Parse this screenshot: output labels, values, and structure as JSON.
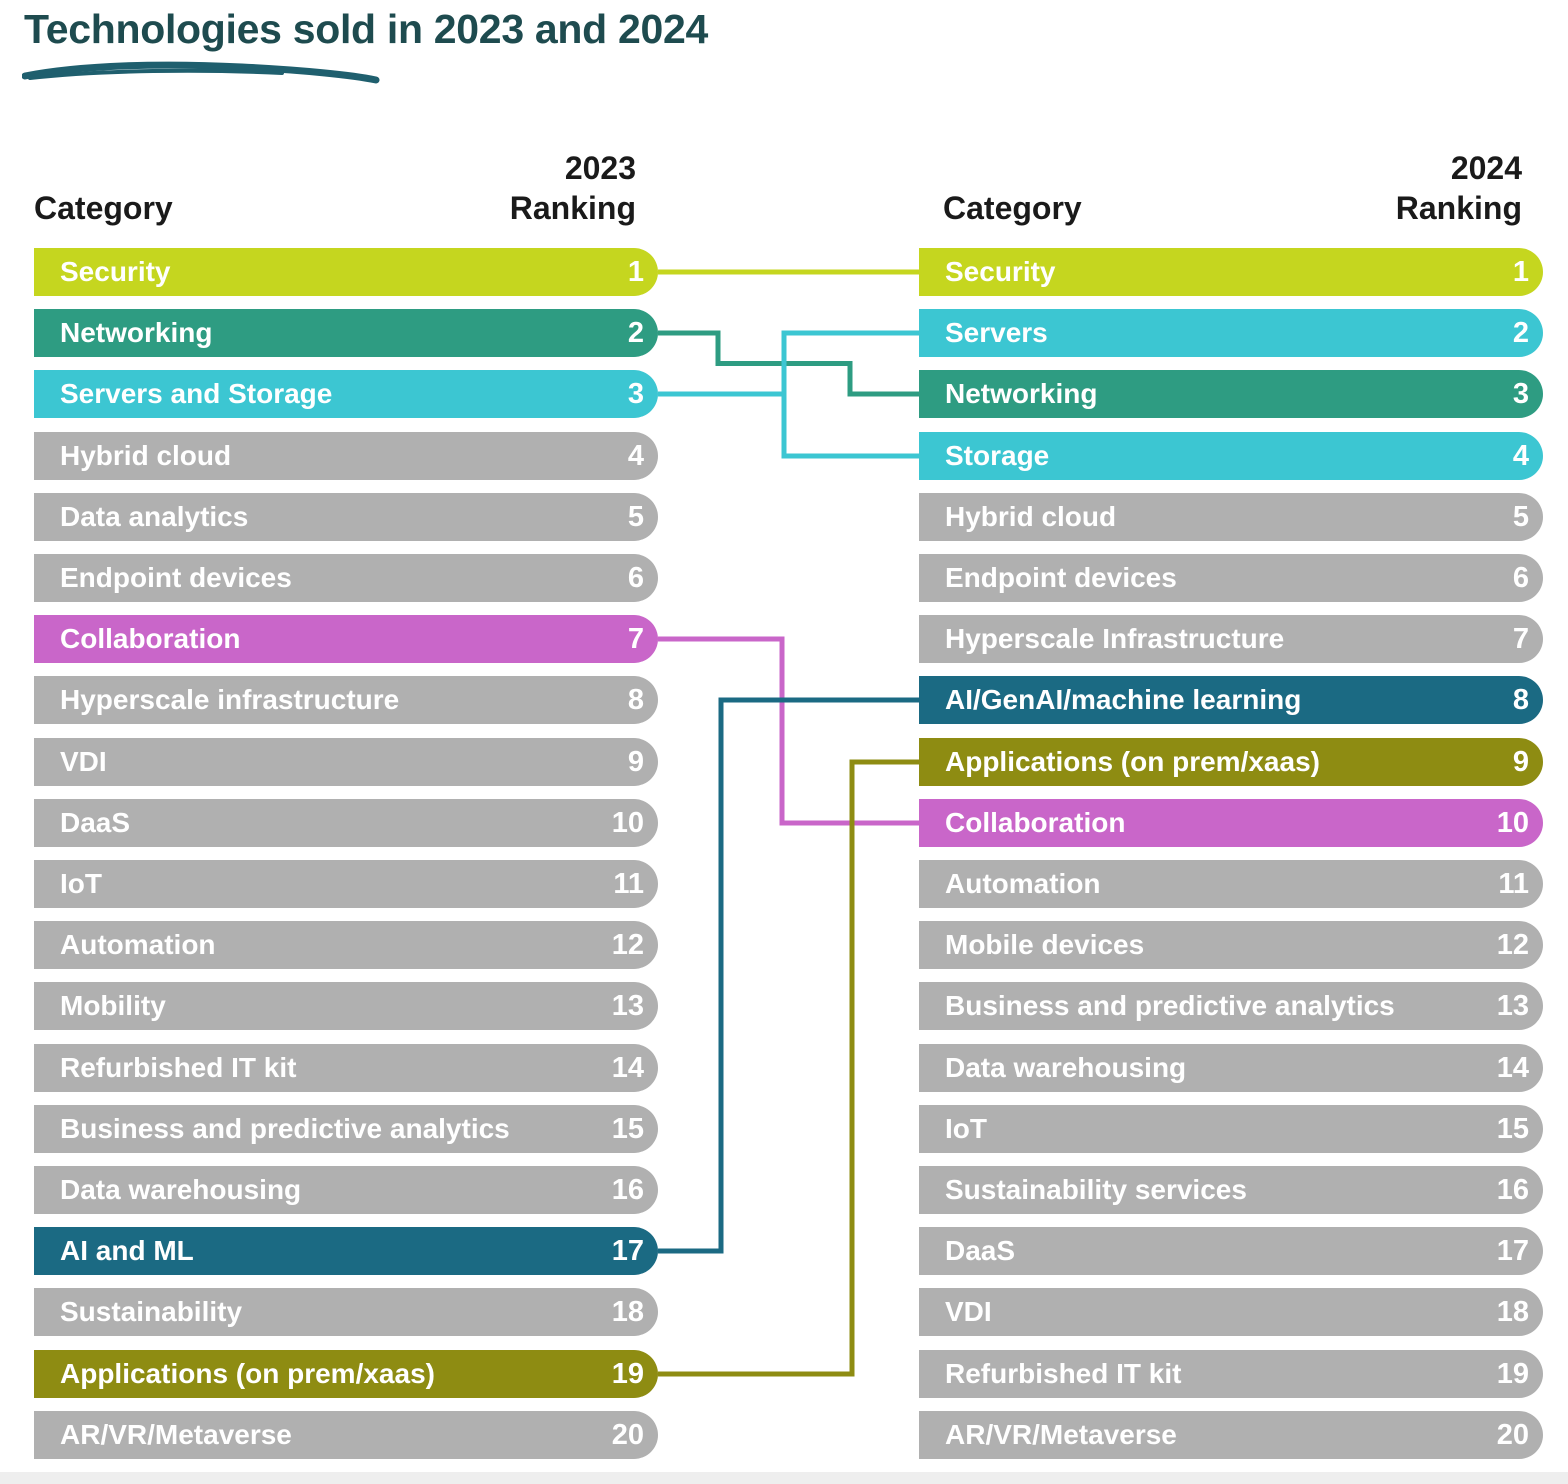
{
  "title": "Technologies sold in 2023 and 2024",
  "colors": {
    "title": "#1e4b4f",
    "underline": "#1f5f6e",
    "gray": "#b0b0b0",
    "security": "#c5d61f",
    "networking": "#2e9c82",
    "servers_storage": "#3cc6d2",
    "collaboration": "#c966c9",
    "ai_ml": "#1b6a83",
    "applications": "#8e8c12"
  },
  "left_header": {
    "category": "Category",
    "year": "2023",
    "ranking": "Ranking"
  },
  "right_header": {
    "category": "Category",
    "year": "2024",
    "ranking": "Ranking"
  },
  "chart_data": {
    "type": "table",
    "title": "Technologies sold in 2023 and 2024",
    "columns": [
      "Category",
      "Ranking"
    ],
    "ranking_2023": [
      {
        "category": "Security",
        "rank": "1",
        "color": "#c5d61f"
      },
      {
        "category": "Networking",
        "rank": "2",
        "color": "#2e9c82"
      },
      {
        "category": "Servers and Storage",
        "rank": "3",
        "color": "#3cc6d2"
      },
      {
        "category": "Hybrid cloud",
        "rank": "4",
        "color": "#b0b0b0"
      },
      {
        "category": "Data analytics",
        "rank": "5",
        "color": "#b0b0b0"
      },
      {
        "category": "Endpoint devices",
        "rank": "6",
        "color": "#b0b0b0"
      },
      {
        "category": "Collaboration",
        "rank": "7",
        "color": "#c966c9"
      },
      {
        "category": "Hyperscale infrastructure",
        "rank": "8",
        "color": "#b0b0b0"
      },
      {
        "category": "VDI",
        "rank": "9",
        "color": "#b0b0b0"
      },
      {
        "category": "DaaS",
        "rank": "10",
        "color": "#b0b0b0"
      },
      {
        "category": "IoT",
        "rank": "11",
        "color": "#b0b0b0"
      },
      {
        "category": "Automation",
        "rank": "12",
        "color": "#b0b0b0"
      },
      {
        "category": "Mobility",
        "rank": "13",
        "color": "#b0b0b0"
      },
      {
        "category": "Refurbished IT kit",
        "rank": "14",
        "color": "#b0b0b0"
      },
      {
        "category": "Business and predictive analytics",
        "rank": "15",
        "color": "#b0b0b0"
      },
      {
        "category": "Data warehousing",
        "rank": "16",
        "color": "#b0b0b0"
      },
      {
        "category": "AI and ML",
        "rank": "17",
        "color": "#1b6a83"
      },
      {
        "category": "Sustainability",
        "rank": "18",
        "color": "#b0b0b0"
      },
      {
        "category": "Applications (on prem/xaas)",
        "rank": "19",
        "color": "#8e8c12"
      },
      {
        "category": "AR/VR/Metaverse",
        "rank": "20",
        "color": "#b0b0b0"
      }
    ],
    "ranking_2024": [
      {
        "category": "Security",
        "rank": "1",
        "color": "#c5d61f"
      },
      {
        "category": "Servers",
        "rank": "2",
        "color": "#3cc6d2"
      },
      {
        "category": "Networking",
        "rank": "3",
        "color": "#2e9c82"
      },
      {
        "category": "Storage",
        "rank": "4",
        "color": "#3cc6d2"
      },
      {
        "category": "Hybrid cloud",
        "rank": "5",
        "color": "#b0b0b0"
      },
      {
        "category": "Endpoint devices",
        "rank": "6",
        "color": "#b0b0b0"
      },
      {
        "category": "Hyperscale Infrastructure",
        "rank": "7",
        "color": "#b0b0b0"
      },
      {
        "category": "AI/GenAI/machine learning",
        "rank": "8",
        "color": "#1b6a83"
      },
      {
        "category": "Applications (on prem/xaas)",
        "rank": "9",
        "color": "#8e8c12"
      },
      {
        "category": "Collaboration",
        "rank": "10",
        "color": "#c966c9"
      },
      {
        "category": "Automation",
        "rank": "11",
        "color": "#b0b0b0"
      },
      {
        "category": "Mobile devices",
        "rank": "12",
        "color": "#b0b0b0"
      },
      {
        "category": "Business and predictive analytics",
        "rank": "13",
        "color": "#b0b0b0"
      },
      {
        "category": "Data warehousing",
        "rank": "14",
        "color": "#b0b0b0"
      },
      {
        "category": "IoT",
        "rank": "15",
        "color": "#b0b0b0"
      },
      {
        "category": "Sustainability services",
        "rank": "16",
        "color": "#b0b0b0"
      },
      {
        "category": "DaaS",
        "rank": "17",
        "color": "#b0b0b0"
      },
      {
        "category": "VDI",
        "rank": "18",
        "color": "#b0b0b0"
      },
      {
        "category": "Refurbished IT kit",
        "rank": "19",
        "color": "#b0b0b0"
      },
      {
        "category": "AR/VR/Metaverse",
        "rank": "20",
        "color": "#b0b0b0"
      }
    ],
    "connections": [
      {
        "from_rank_2023": 1,
        "to_rank_2024": 1,
        "color": "#c5d61f"
      },
      {
        "from_rank_2023": 2,
        "to_rank_2024": 3,
        "color": "#2e9c82"
      },
      {
        "from_rank_2023": 3,
        "to_rank_2024": 2,
        "color": "#3cc6d2"
      },
      {
        "from_rank_2023": 3,
        "to_rank_2024": 4,
        "color": "#3cc6d2"
      },
      {
        "from_rank_2023": 7,
        "to_rank_2024": 10,
        "color": "#c966c9"
      },
      {
        "from_rank_2023": 17,
        "to_rank_2024": 8,
        "color": "#1b6a83"
      },
      {
        "from_rank_2023": 19,
        "to_rank_2024": 9,
        "color": "#8e8c12"
      }
    ]
  }
}
